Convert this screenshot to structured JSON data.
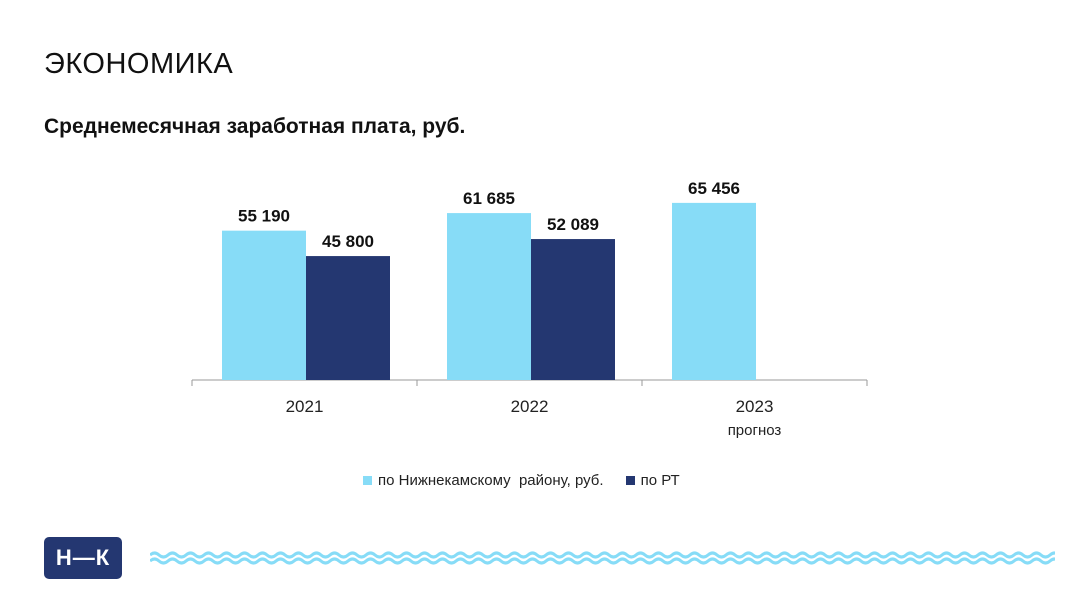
{
  "header": {
    "section_title": "ЭКОНОМИКА",
    "logo_text": "Н—К"
  },
  "colors": {
    "series_nk": "#87dcf7",
    "series_rt": "#243771",
    "logo_bg": "#243771",
    "wave": "#87dcf7",
    "axis": "#9a9a9a"
  },
  "chart_data": {
    "type": "bar",
    "title": "Среднемесячная заработная плата, руб.",
    "categories": [
      "2021",
      "2022",
      "2023"
    ],
    "category_sublabels": [
      "",
      "",
      "прогноз"
    ],
    "series": [
      {
        "name": "по Нижнекамскому  району, руб.",
        "values": [
          55190,
          61685,
          65456
        ],
        "labels": [
          "55 190",
          "61 685",
          "65 456"
        ]
      },
      {
        "name": "по РТ",
        "values": [
          45800,
          52089,
          null
        ],
        "labels": [
          "45 800",
          "52 089",
          ""
        ]
      }
    ],
    "ylim": [
      0,
      85000
    ],
    "grid": false,
    "legend_position": "bottom"
  }
}
